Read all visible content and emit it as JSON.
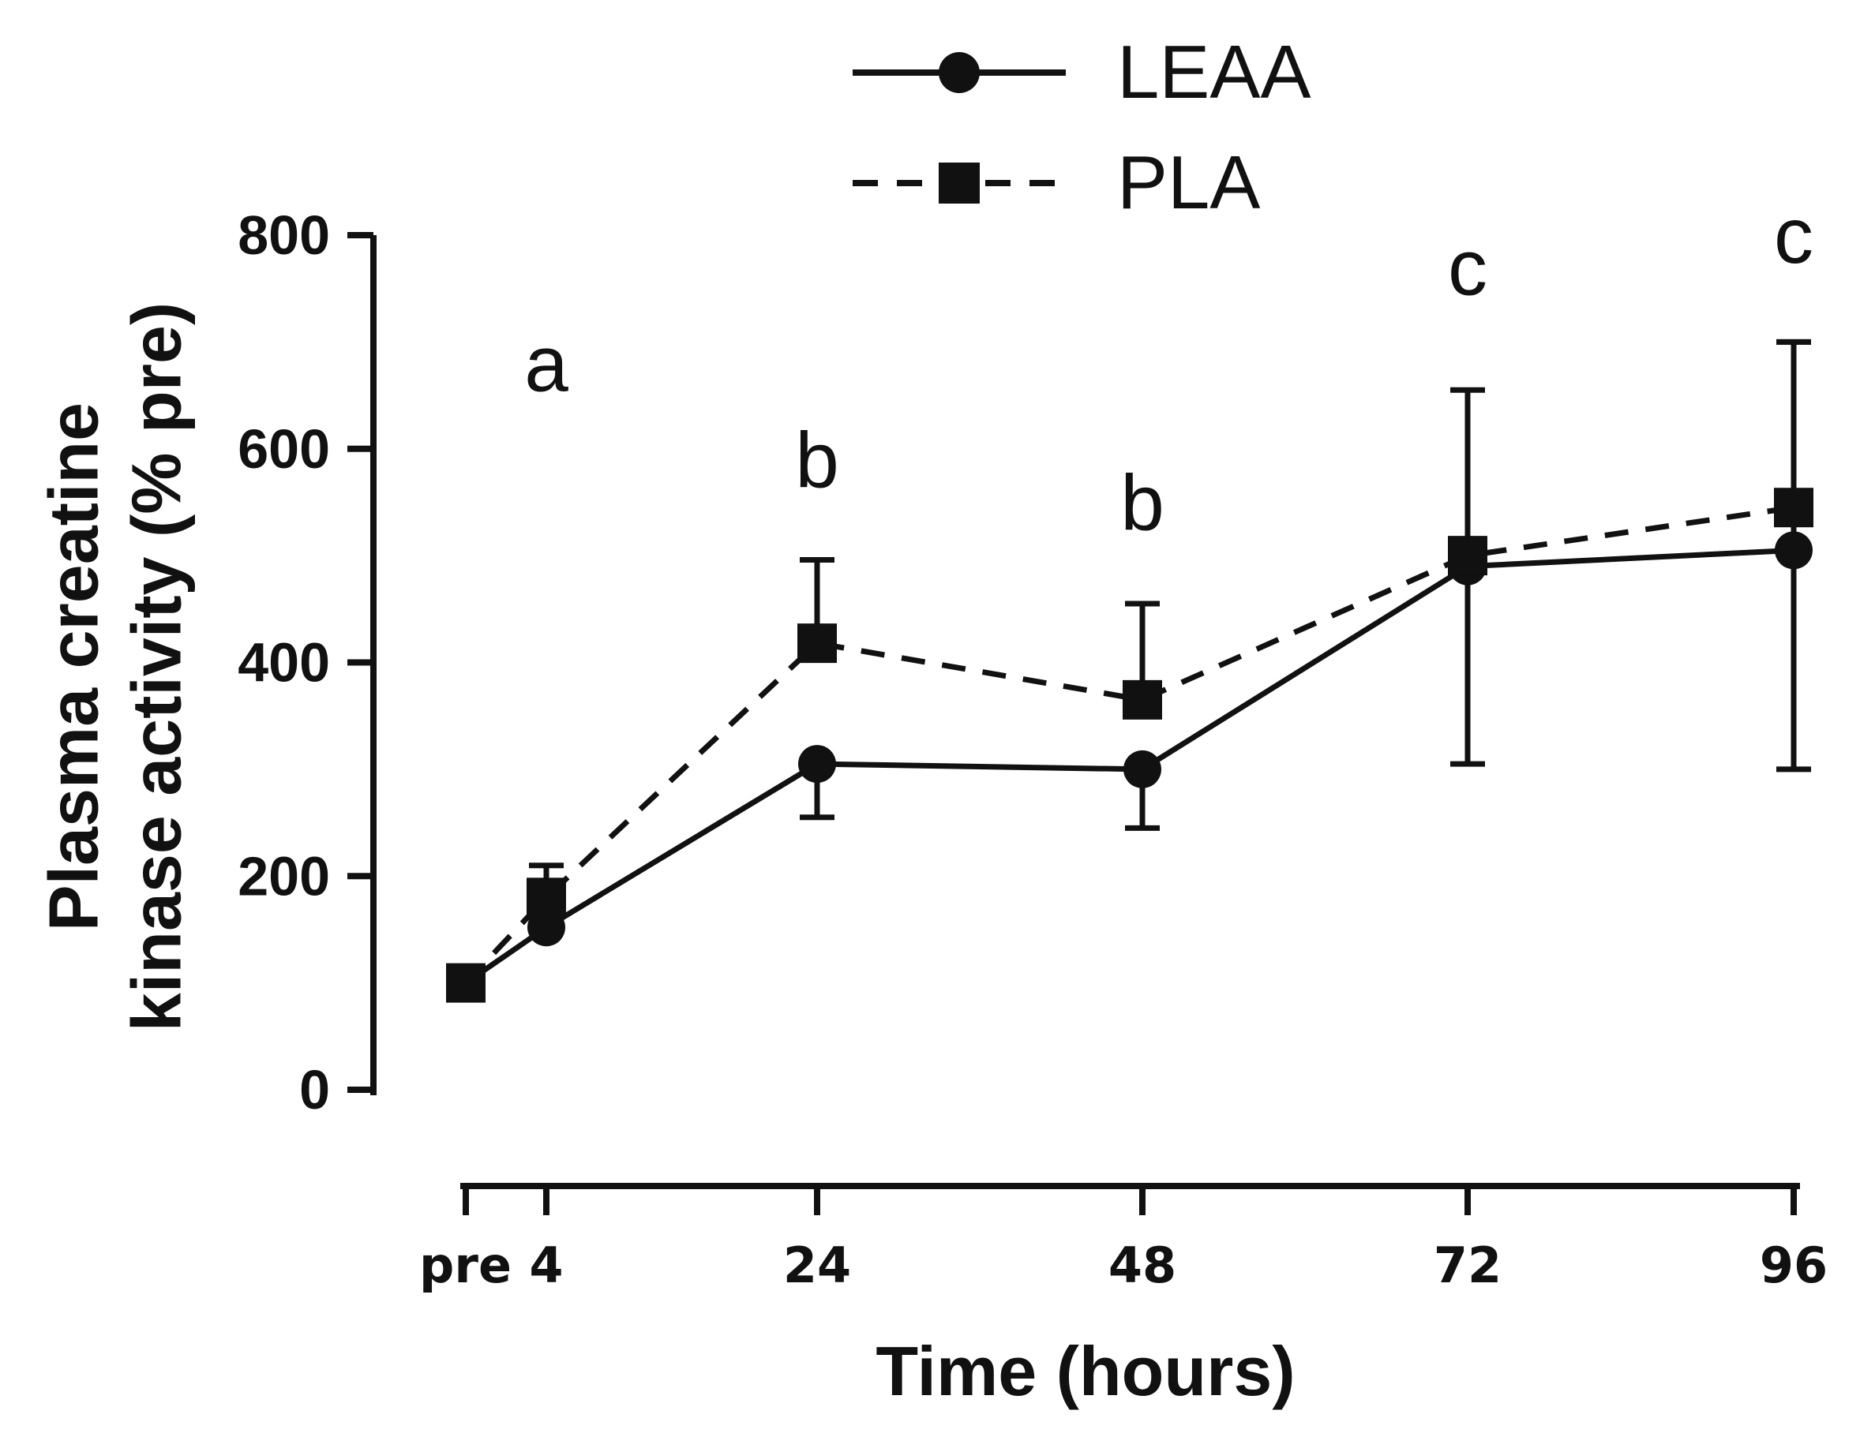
{
  "chart_data": {
    "type": "line",
    "title": "",
    "xlabel": "Time (hours)",
    "ylabel": [
      "Plasma creatine",
      "kinase activity (% pre)"
    ],
    "x": [
      0,
      4,
      24,
      48,
      72,
      96
    ],
    "xtick_labels": [
      "pre",
      "4",
      "24",
      "48",
      "72",
      "96"
    ],
    "ylim": [
      0,
      800
    ],
    "yticks": [
      0,
      200,
      400,
      600,
      800
    ],
    "grid": false,
    "legend_position": "top-center",
    "series": [
      {
        "name": "LEAA",
        "marker": "circle",
        "line_style": "solid",
        "values": [
          100,
          152,
          305,
          300,
          490,
          505
        ],
        "error_up": [
          0,
          0,
          0,
          0,
          165,
          195
        ],
        "error_down": [
          0,
          0,
          50,
          55,
          185,
          205
        ]
      },
      {
        "name": "PLA",
        "marker": "square",
        "line_style": "dashed",
        "values": [
          100,
          180,
          418,
          365,
          500,
          545
        ],
        "error_up": [
          0,
          30,
          78,
          90,
          0,
          155
        ],
        "error_down": [
          0,
          0,
          0,
          0,
          0,
          0
        ]
      }
    ],
    "annotations": [
      {
        "text": "a",
        "x": 4,
        "y": 680
      },
      {
        "text": "b",
        "x": 24,
        "y": 590
      },
      {
        "text": "b",
        "x": 48,
        "y": 550
      },
      {
        "text": "c",
        "x": 72,
        "y": 770
      },
      {
        "text": "c",
        "x": 96,
        "y": 800
      }
    ]
  }
}
